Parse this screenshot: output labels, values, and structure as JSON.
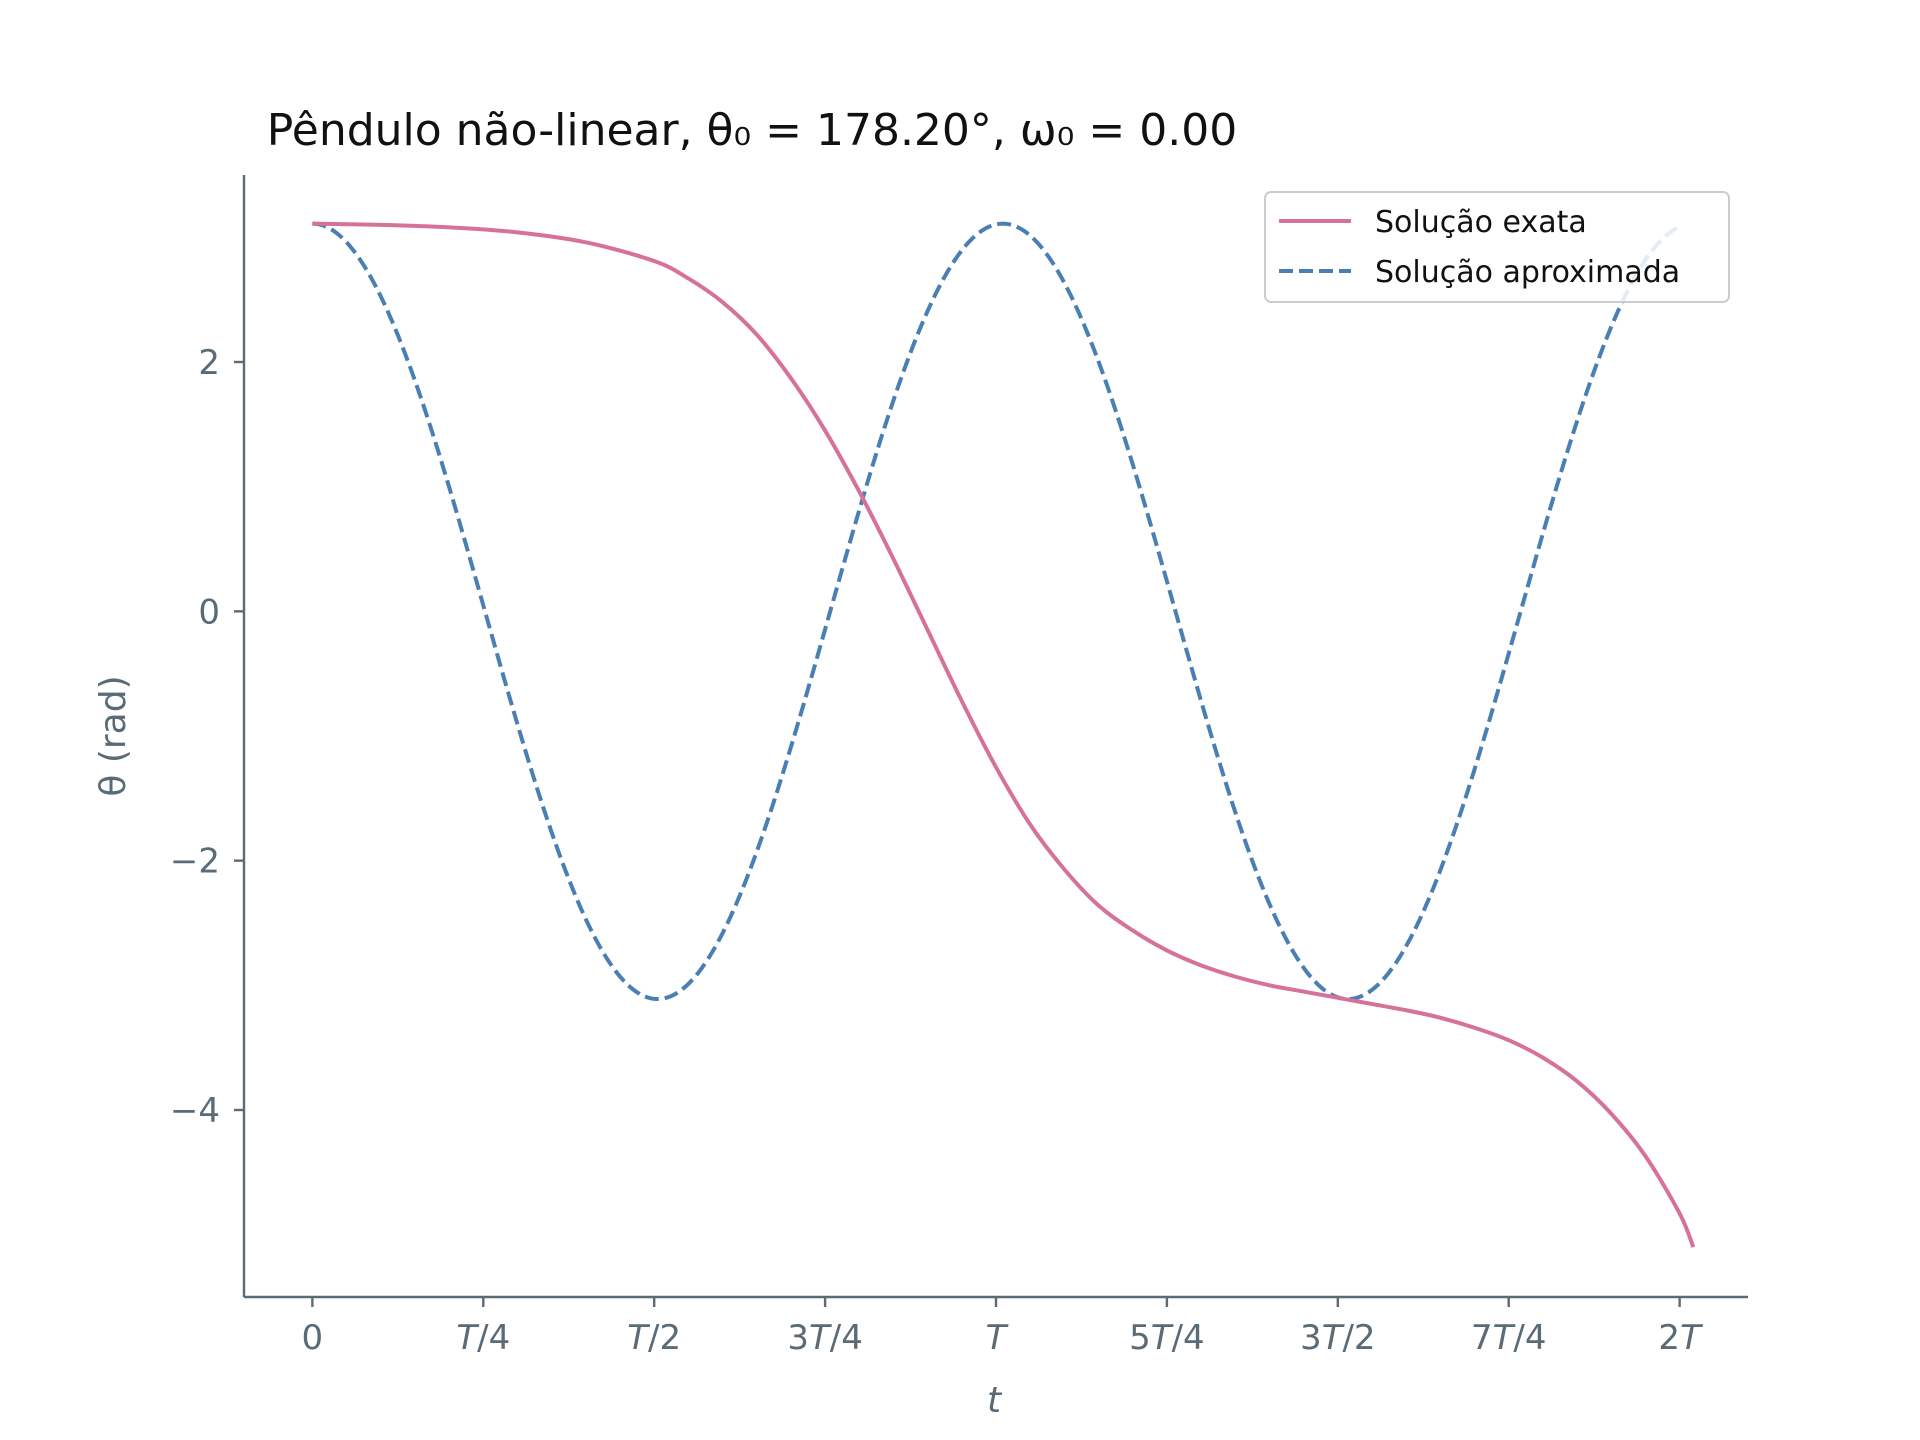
{
  "chart_data": {
    "type": "line",
    "title": "Pêndulo não-linear, θ₀ = 178.20°, ω₀ = 0.00",
    "xlabel": "t",
    "ylabel": "θ (rad)",
    "x_unit": "T",
    "xlim": [
      -0.1,
      2.1
    ],
    "ylim": [
      -5.5,
      3.5
    ],
    "x_ticks": [
      {
        "value": 0,
        "label": "0"
      },
      {
        "value": 0.25,
        "label": "T/4"
      },
      {
        "value": 0.5,
        "label": "T/2"
      },
      {
        "value": 0.75,
        "label": "3T/4"
      },
      {
        "value": 1.0,
        "label": "T"
      },
      {
        "value": 1.25,
        "label": "5T/4"
      },
      {
        "value": 1.5,
        "label": "3T/2"
      },
      {
        "value": 1.75,
        "label": "7T/4"
      },
      {
        "value": 2.0,
        "label": "2T"
      }
    ],
    "y_ticks": [
      {
        "value": 2,
        "label": "2"
      },
      {
        "value": 0,
        "label": "0"
      },
      {
        "value": -2,
        "label": "−2"
      },
      {
        "value": -4,
        "label": "−4"
      }
    ],
    "grid": false,
    "legend_position": "top-right",
    "series": [
      {
        "name": "Solução exata",
        "style": "solid",
        "color": "#d6729a",
        "x": [
          0,
          0.1,
          0.2,
          0.3,
          0.4,
          0.5,
          0.55,
          0.6,
          0.65,
          0.7,
          0.75,
          0.8,
          0.85,
          0.9,
          0.95,
          1.0,
          1.05,
          1.1,
          1.15,
          1.2,
          1.25,
          1.3,
          1.35,
          1.4,
          1.45,
          1.5,
          1.55,
          1.6,
          1.65,
          1.7,
          1.75,
          1.8,
          1.85,
          1.9,
          1.95,
          2.0,
          2.02
        ],
        "y": [
          3.11,
          3.1,
          3.08,
          3.04,
          2.96,
          2.81,
          2.67,
          2.48,
          2.22,
          1.87,
          1.45,
          0.96,
          0.42,
          -0.15,
          -0.72,
          -1.25,
          -1.71,
          -2.07,
          -2.36,
          -2.56,
          -2.72,
          -2.84,
          -2.93,
          -3.0,
          -3.05,
          -3.1,
          -3.15,
          -3.2,
          -3.26,
          -3.34,
          -3.44,
          -3.58,
          -3.77,
          -4.03,
          -4.37,
          -4.83,
          -5.1
        ]
      },
      {
        "name": "Solução aproximada",
        "style": "dashed",
        "color": "#4a7fb3",
        "amplitude": 3.11,
        "period_in_T": 1.01,
        "x_range": [
          0,
          2.0
        ]
      }
    ]
  }
}
